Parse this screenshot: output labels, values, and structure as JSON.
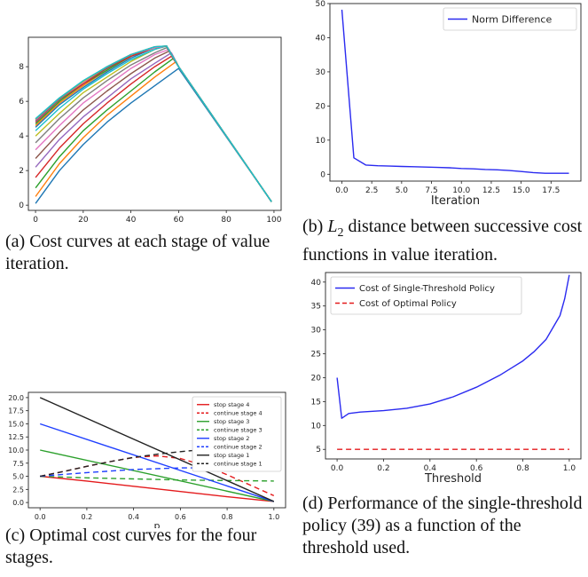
{
  "captions": {
    "a": "(a) Cost curves at each stage of value iteration.",
    "b_prefix": "(b) ",
    "b_math": "L",
    "b_sub": "2",
    "b_rest": " distance between successive cost functions in value iteration.",
    "c": "(c) Optimal cost curves for the four stages.",
    "d": "(d) Performance of the single-threshold policy (39) as a function of the threshold used."
  },
  "chart_data": [
    {
      "id": "a",
      "type": "line",
      "title": "",
      "xlabel": "",
      "ylabel": "",
      "xlim": [
        -3,
        103
      ],
      "ylim": [
        -0.3,
        9.7
      ],
      "xticks": [
        0,
        20,
        40,
        60,
        80,
        100
      ],
      "yticks": [
        0,
        2,
        4,
        6,
        8
      ],
      "grid": false,
      "colors": [
        "#1f77b4",
        "#ff7f0e",
        "#2ca02c",
        "#d62728",
        "#9467bd",
        "#8c564b",
        "#e377c2",
        "#7f7f7f",
        "#bcbd22",
        "#17becf",
        "#1f77b4",
        "#ff7f0e",
        "#2ca02c",
        "#d62728",
        "#9467bd",
        "#8c564b",
        "#e377c2",
        "#7f7f7f",
        "#bcbd22",
        "#17becf"
      ],
      "series": [
        {
          "x": [
            0,
            10,
            20,
            30,
            40,
            50,
            60,
            99
          ],
          "values": [
            0.1,
            2.0,
            3.5,
            4.8,
            5.9,
            6.9,
            7.9,
            0.2
          ]
        },
        {
          "x": [
            0,
            10,
            20,
            30,
            40,
            50,
            59,
            60,
            99
          ],
          "values": [
            0.5,
            2.4,
            3.9,
            5.2,
            6.3,
            7.4,
            8.3,
            8.0,
            0.2
          ]
        },
        {
          "x": [
            0,
            10,
            20,
            30,
            40,
            50,
            58,
            60,
            99
          ],
          "values": [
            1.0,
            2.8,
            4.3,
            5.5,
            6.6,
            7.7,
            8.5,
            8.0,
            0.2
          ]
        },
        {
          "x": [
            0,
            10,
            20,
            30,
            40,
            50,
            57,
            60,
            99
          ],
          "values": [
            1.6,
            3.3,
            4.7,
            5.9,
            7.0,
            8.0,
            8.6,
            8.0,
            0.2
          ]
        },
        {
          "x": [
            0,
            10,
            20,
            30,
            40,
            50,
            57,
            60,
            99
          ],
          "values": [
            2.2,
            3.8,
            5.1,
            6.2,
            7.3,
            8.2,
            8.8,
            8.0,
            0.2
          ]
        },
        {
          "x": [
            0,
            10,
            20,
            30,
            40,
            50,
            56,
            60,
            99
          ],
          "values": [
            2.7,
            4.2,
            5.5,
            6.6,
            7.6,
            8.5,
            8.9,
            8.0,
            0.2
          ]
        },
        {
          "x": [
            0,
            10,
            20,
            30,
            40,
            50,
            56,
            60,
            99
          ],
          "values": [
            3.2,
            4.6,
            5.9,
            6.9,
            7.9,
            8.7,
            9.0,
            8.0,
            0.2
          ]
        },
        {
          "x": [
            0,
            10,
            20,
            30,
            40,
            50,
            55,
            60,
            99
          ],
          "values": [
            3.6,
            5.0,
            6.2,
            7.2,
            8.1,
            8.8,
            9.1,
            8.0,
            0.2
          ]
        },
        {
          "x": [
            0,
            10,
            20,
            30,
            40,
            50,
            55,
            60,
            99
          ],
          "values": [
            4.0,
            5.3,
            6.5,
            7.4,
            8.3,
            9.0,
            9.2,
            8.0,
            0.2
          ]
        },
        {
          "x": [
            0,
            10,
            20,
            30,
            40,
            50,
            55,
            60,
            99
          ],
          "values": [
            4.3,
            5.6,
            6.7,
            7.6,
            8.4,
            9.0,
            9.2,
            8.0,
            0.2
          ]
        },
        {
          "x": [
            0,
            10,
            20,
            30,
            40,
            50,
            55,
            60,
            99
          ],
          "values": [
            4.5,
            5.8,
            6.8,
            7.7,
            8.5,
            9.1,
            9.2,
            8.0,
            0.2
          ]
        },
        {
          "x": [
            0,
            10,
            20,
            30,
            40,
            50,
            55,
            60,
            99
          ],
          "values": [
            4.6,
            5.9,
            6.9,
            7.8,
            8.6,
            9.1,
            9.2,
            8.0,
            0.2
          ]
        },
        {
          "x": [
            0,
            10,
            20,
            30,
            40,
            50,
            55,
            60,
            99
          ],
          "values": [
            4.7,
            6.0,
            7.0,
            7.8,
            8.6,
            9.1,
            9.2,
            8.0,
            0.2
          ]
        },
        {
          "x": [
            0,
            10,
            20,
            30,
            40,
            50,
            55,
            60,
            99
          ],
          "values": [
            4.8,
            6.1,
            7.0,
            7.9,
            8.6,
            9.1,
            9.2,
            8.0,
            0.2
          ]
        },
        {
          "x": [
            0,
            10,
            20,
            30,
            40,
            50,
            55,
            60,
            99
          ],
          "values": [
            4.85,
            6.1,
            7.1,
            7.9,
            8.7,
            9.1,
            9.2,
            8.0,
            0.2
          ]
        },
        {
          "x": [
            0,
            10,
            20,
            30,
            40,
            50,
            55,
            60,
            99
          ],
          "values": [
            4.9,
            6.1,
            7.1,
            7.9,
            8.7,
            9.1,
            9.2,
            8.0,
            0.2
          ]
        },
        {
          "x": [
            0,
            10,
            20,
            30,
            40,
            50,
            55,
            60,
            99
          ],
          "values": [
            4.93,
            6.15,
            7.1,
            8.0,
            8.7,
            9.1,
            9.2,
            8.0,
            0.2
          ]
        },
        {
          "x": [
            0,
            10,
            20,
            30,
            40,
            50,
            55,
            60,
            99
          ],
          "values": [
            4.96,
            6.15,
            7.15,
            8.0,
            8.7,
            9.15,
            9.2,
            8.0,
            0.2
          ]
        },
        {
          "x": [
            0,
            10,
            20,
            30,
            40,
            50,
            55,
            60,
            99
          ],
          "values": [
            4.98,
            6.2,
            7.15,
            8.0,
            8.7,
            9.15,
            9.2,
            8.0,
            0.2
          ]
        },
        {
          "x": [
            0,
            10,
            20,
            30,
            40,
            50,
            55,
            60,
            99
          ],
          "values": [
            5.0,
            6.2,
            7.2,
            8.0,
            8.7,
            9.15,
            9.2,
            8.0,
            0.2
          ]
        }
      ]
    },
    {
      "id": "b",
      "type": "line",
      "title": "",
      "xlabel": "Iteration",
      "ylabel": "",
      "xlim": [
        -1,
        20
      ],
      "ylim": [
        -2,
        50
      ],
      "xticks": [
        0.0,
        2.5,
        5.0,
        7.5,
        10.0,
        12.5,
        15.0,
        17.5
      ],
      "xticklabels": [
        "0.0",
        "2.5",
        "5.0",
        "7.5",
        "10.0",
        "12.5",
        "15.0",
        "17.5"
      ],
      "yticks": [
        0,
        10,
        20,
        30,
        40,
        50
      ],
      "grid": false,
      "legend": "top-right",
      "series": [
        {
          "name": "Norm Difference",
          "color": "#2a2af0",
          "dash": "",
          "x": [
            0,
            1,
            2,
            3,
            4,
            5,
            6,
            7,
            8,
            9,
            10,
            11,
            12,
            13,
            14,
            15,
            16,
            17,
            18,
            19
          ],
          "values": [
            48.2,
            4.8,
            2.7,
            2.5,
            2.4,
            2.3,
            2.2,
            2.1,
            2.0,
            1.9,
            1.7,
            1.6,
            1.4,
            1.3,
            1.1,
            0.8,
            0.5,
            0.3,
            0.3,
            0.3
          ]
        }
      ]
    },
    {
      "id": "c",
      "type": "line",
      "title": "",
      "xlabel": "p",
      "ylabel": "",
      "xlim": [
        -0.05,
        1.05
      ],
      "ylim": [
        -1,
        21
      ],
      "xticks": [
        0.0,
        0.2,
        0.4,
        0.6,
        0.8,
        1.0
      ],
      "xticklabels": [
        "0.0",
        "0.2",
        "0.4",
        "0.6",
        "0.8",
        "1.0"
      ],
      "yticks": [
        0.0,
        2.5,
        5.0,
        7.5,
        10.0,
        12.5,
        15.0,
        17.5,
        20.0
      ],
      "yticklabels": [
        "0.0",
        "2.5",
        "5.0",
        "7.5",
        "10.0",
        "12.5",
        "15.0",
        "17.5",
        "20.0"
      ],
      "grid": false,
      "legend": "top-right",
      "series": [
        {
          "name": "stop stage 4",
          "color": "#e41a1c",
          "dash": "",
          "x": [
            0,
            0.2,
            0.4,
            0.6,
            0.8,
            1.0
          ],
          "values": [
            5.0,
            4.1,
            3.1,
            2.1,
            1.1,
            0.2
          ]
        },
        {
          "name": "continue stage 4",
          "color": "#e41a1c",
          "dash": "6,4",
          "x": [
            0,
            0.1,
            0.2,
            0.3,
            0.4,
            0.5,
            0.6,
            0.7,
            0.8,
            0.9,
            1.0
          ],
          "values": [
            5.0,
            5.9,
            6.9,
            7.8,
            8.6,
            8.9,
            8.4,
            7.1,
            5.3,
            3.3,
            1.3
          ]
        },
        {
          "name": "stop stage 3",
          "color": "#2ca02c",
          "dash": "",
          "x": [
            0,
            1.0
          ],
          "values": [
            10.0,
            0.2
          ]
        },
        {
          "name": "continue stage 3",
          "color": "#2ca02c",
          "dash": "6,4",
          "x": [
            0,
            0.2,
            0.4,
            0.6,
            0.8,
            1.0
          ],
          "values": [
            5.0,
            4.7,
            4.5,
            4.3,
            4.2,
            4.1
          ]
        },
        {
          "name": "stop stage 2",
          "color": "#1f3fff",
          "dash": "",
          "x": [
            0,
            1.0
          ],
          "values": [
            15.0,
            0.2
          ]
        },
        {
          "name": "continue stage 2",
          "color": "#1f3fff",
          "dash": "6,4",
          "x": [
            0,
            0.2,
            0.4,
            0.6,
            0.8,
            1.0
          ],
          "values": [
            5.0,
            5.7,
            6.3,
            6.6,
            6.6,
            6.1
          ]
        },
        {
          "name": "stop stage 1",
          "color": "#222222",
          "dash": "",
          "x": [
            0,
            1.0
          ],
          "values": [
            20.0,
            0.2
          ]
        },
        {
          "name": "continue stage 1",
          "color": "#222222",
          "dash": "6,4",
          "x": [
            0,
            0.1,
            0.2,
            0.3,
            0.4,
            0.5,
            0.6,
            0.7,
            0.8
          ],
          "values": [
            5.0,
            5.9,
            6.9,
            7.8,
            8.6,
            9.2,
            9.7,
            10.1,
            10.5
          ]
        }
      ]
    },
    {
      "id": "d",
      "type": "line",
      "title": "",
      "xlabel": "Threshold",
      "ylabel": "",
      "xlim": [
        -0.05,
        1.05
      ],
      "ylim": [
        3,
        42
      ],
      "xticks": [
        0.0,
        0.2,
        0.4,
        0.6,
        0.8,
        1.0
      ],
      "xticklabels": [
        "0.0",
        "0.2",
        "0.4",
        "0.6",
        "0.8",
        "1.0"
      ],
      "yticks": [
        5,
        10,
        15,
        20,
        25,
        30,
        35,
        40
      ],
      "grid": false,
      "legend": "top-left",
      "series": [
        {
          "name": "Cost of Single-Threshold Policy",
          "color": "#2a2af0",
          "dash": "",
          "x": [
            0,
            0.02,
            0.05,
            0.1,
            0.2,
            0.3,
            0.4,
            0.5,
            0.6,
            0.7,
            0.75,
            0.8,
            0.85,
            0.9,
            0.93,
            0.96,
            0.98,
            1.0
          ],
          "values": [
            20.0,
            11.5,
            12.5,
            12.8,
            13.1,
            13.6,
            14.5,
            16.0,
            18.0,
            20.5,
            22.0,
            23.5,
            25.5,
            28.0,
            30.5,
            33.0,
            36.5,
            41.5
          ]
        },
        {
          "name": "Cost of Optimal Policy",
          "color": "#e41a1c",
          "dash": "6,4",
          "x": [
            0,
            1.0
          ],
          "values": [
            5.0,
            5.0
          ]
        }
      ]
    }
  ]
}
